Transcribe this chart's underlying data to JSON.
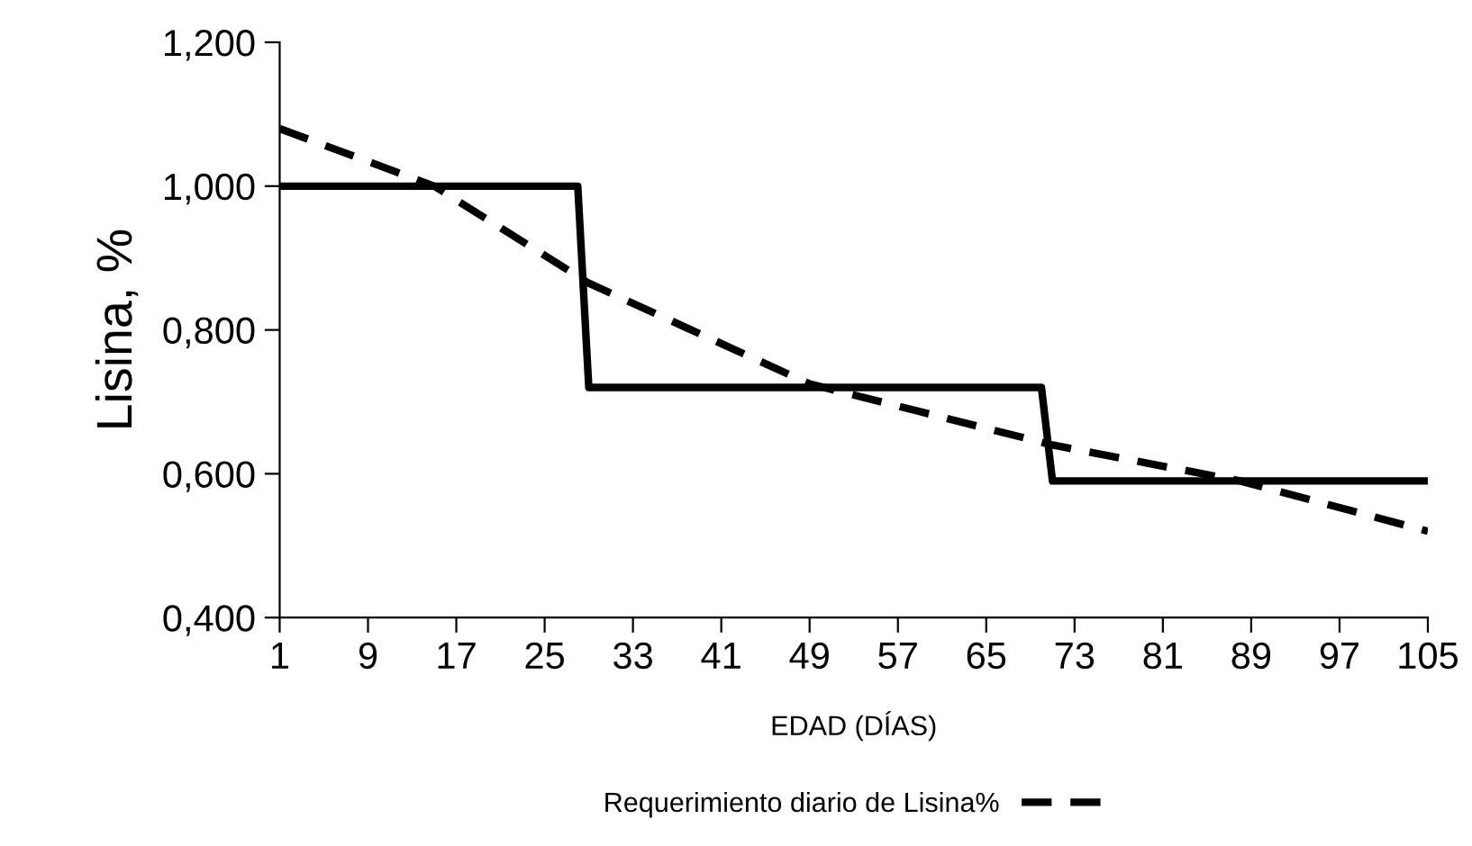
{
  "chart_data": {
    "type": "line",
    "xlabel": "EDAD (DÍAS)",
    "ylabel": "Lisina, %",
    "series": [
      {
        "color": "#000000",
        "line_style": "solid",
        "x": [
          1,
          28,
          29,
          70,
          71,
          105
        ],
        "values": [
          1.0,
          1.0,
          0.72,
          0.72,
          0.59,
          0.59
        ]
      },
      {
        "name": "Requerimiento diario de Lisina%",
        "color": "#000000",
        "line_style": "dashed",
        "x": [
          1,
          15,
          29,
          49,
          71,
          88,
          105
        ],
        "values": [
          1.08,
          1.0,
          0.865,
          0.725,
          0.64,
          0.59,
          0.52
        ]
      }
    ],
    "xlim": [
      1,
      105
    ],
    "xticks": [
      1,
      9,
      17,
      25,
      33,
      41,
      49,
      57,
      65,
      73,
      81,
      89,
      97,
      105
    ],
    "ylim": [
      0.4,
      1.2
    ],
    "yticks": [
      {
        "value": 0.4,
        "label": "0,400"
      },
      {
        "value": 0.6,
        "label": "0,600"
      },
      {
        "value": 0.8,
        "label": "0,800"
      },
      {
        "value": 1.0,
        "label": "1,000"
      },
      {
        "value": 1.2,
        "label": "1,200"
      }
    ],
    "grid": false,
    "legend": "bottom",
    "marker": "none"
  }
}
